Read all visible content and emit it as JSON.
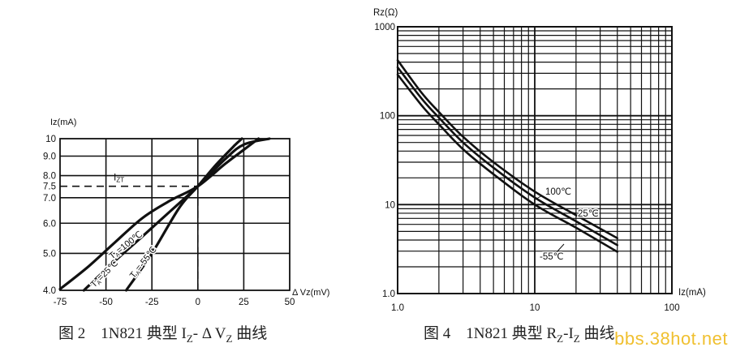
{
  "watermark": "bbs.38hot.net",
  "chart_data": [
    {
      "type": "line",
      "caption": {
        "prefix": "图 2　1N821 典型 ",
        "iz": "I",
        "iz_sub": "Z",
        "dash": "- Δ V",
        "vz_sub": "Z",
        "suffix": " 曲线"
      },
      "xlabel": "Δ Vz(mV)",
      "ylabel": "Iz(mA)",
      "xlim": [
        -75,
        50
      ],
      "ylim": [
        4.0,
        10.0
      ],
      "y_scale": "log",
      "xticks": [
        "-75",
        "-50",
        "-25",
        "0",
        "25",
        "50"
      ],
      "yticks": [
        "4.0",
        "5.0",
        "6.0",
        "7.0",
        "7.5",
        "8.0",
        "9.0",
        "10"
      ],
      "grid": true,
      "reference": {
        "label_main": "I",
        "label_sub": "ZT",
        "iz": 7.5,
        "dvz": 0
      },
      "series": [
        {
          "name": "TA=100℃",
          "label_main": "T",
          "label_sub": "A",
          "label_rest": "=100℃",
          "points": [
            [
              -75,
              4.03
            ],
            [
              -60,
              4.6
            ],
            [
              -45,
              5.35
            ],
            [
              -30,
              6.2
            ],
            [
              -15,
              6.88
            ],
            [
              0,
              7.5
            ],
            [
              15,
              8.6
            ],
            [
              25,
              9.35
            ],
            [
              33,
              10.0
            ]
          ]
        },
        {
          "name": "TA=25℃",
          "label_main": "T",
          "label_sub": "A",
          "label_rest": "=25℃",
          "points": [
            [
              -62,
              4.0
            ],
            [
              -45,
              4.78
            ],
            [
              -30,
              5.55
            ],
            [
              -15,
              6.45
            ],
            [
              0,
              7.5
            ],
            [
              15,
              8.85
            ],
            [
              25,
              9.65
            ],
            [
              39,
              10.0
            ]
          ]
        },
        {
          "name": "TA=-55℃",
          "label_main": "T",
          "label_sub": "A",
          "label_rest": "=-55℃",
          "points": [
            [
              -39,
              4.0
            ],
            [
              -25,
              5.0
            ],
            [
              -10,
              6.6
            ],
            [
              0,
              7.5
            ],
            [
              10,
              8.55
            ],
            [
              20,
              9.6
            ],
            [
              24,
              10.0
            ]
          ]
        }
      ]
    },
    {
      "type": "line",
      "caption": {
        "prefix": "图 4　1N821 典型 ",
        "rz": "R",
        "rz_sub": "Z",
        "mid": "-I",
        "iz_sub": "Z",
        "suffix": " 曲线"
      },
      "xlabel": "Iz(mA)",
      "ylabel": "Rz(Ω)",
      "x_scale": "log",
      "y_scale": "log",
      "xlim": [
        1.0,
        100
      ],
      "ylim": [
        1.0,
        1000
      ],
      "xticks": [
        "1.0",
        "10",
        "100"
      ],
      "yticks": [
        "1.0",
        "10",
        "100",
        "1000"
      ],
      "grid": true,
      "series": [
        {
          "name": "100℃",
          "points": [
            [
              1.0,
              420
            ],
            [
              1.5,
              180
            ],
            [
              2,
              110
            ],
            [
              3,
              58
            ],
            [
              5,
              30
            ],
            [
              10,
              14
            ],
            [
              20,
              7.6
            ],
            [
              40,
              4.2
            ]
          ]
        },
        {
          "name": "25℃",
          "points": [
            [
              1.0,
              350
            ],
            [
              1.5,
              155
            ],
            [
              2,
              95
            ],
            [
              3,
              50
            ],
            [
              5,
              26
            ],
            [
              10,
              12
            ],
            [
              20,
              6.5
            ],
            [
              40,
              3.5
            ]
          ]
        },
        {
          "name": "-55℃",
          "points": [
            [
              1.0,
              290
            ],
            [
              1.5,
              130
            ],
            [
              2,
              80
            ],
            [
              3,
              42
            ],
            [
              5,
              22
            ],
            [
              10,
              10
            ],
            [
              20,
              5.5
            ],
            [
              40,
              2.95
            ]
          ]
        }
      ]
    }
  ]
}
